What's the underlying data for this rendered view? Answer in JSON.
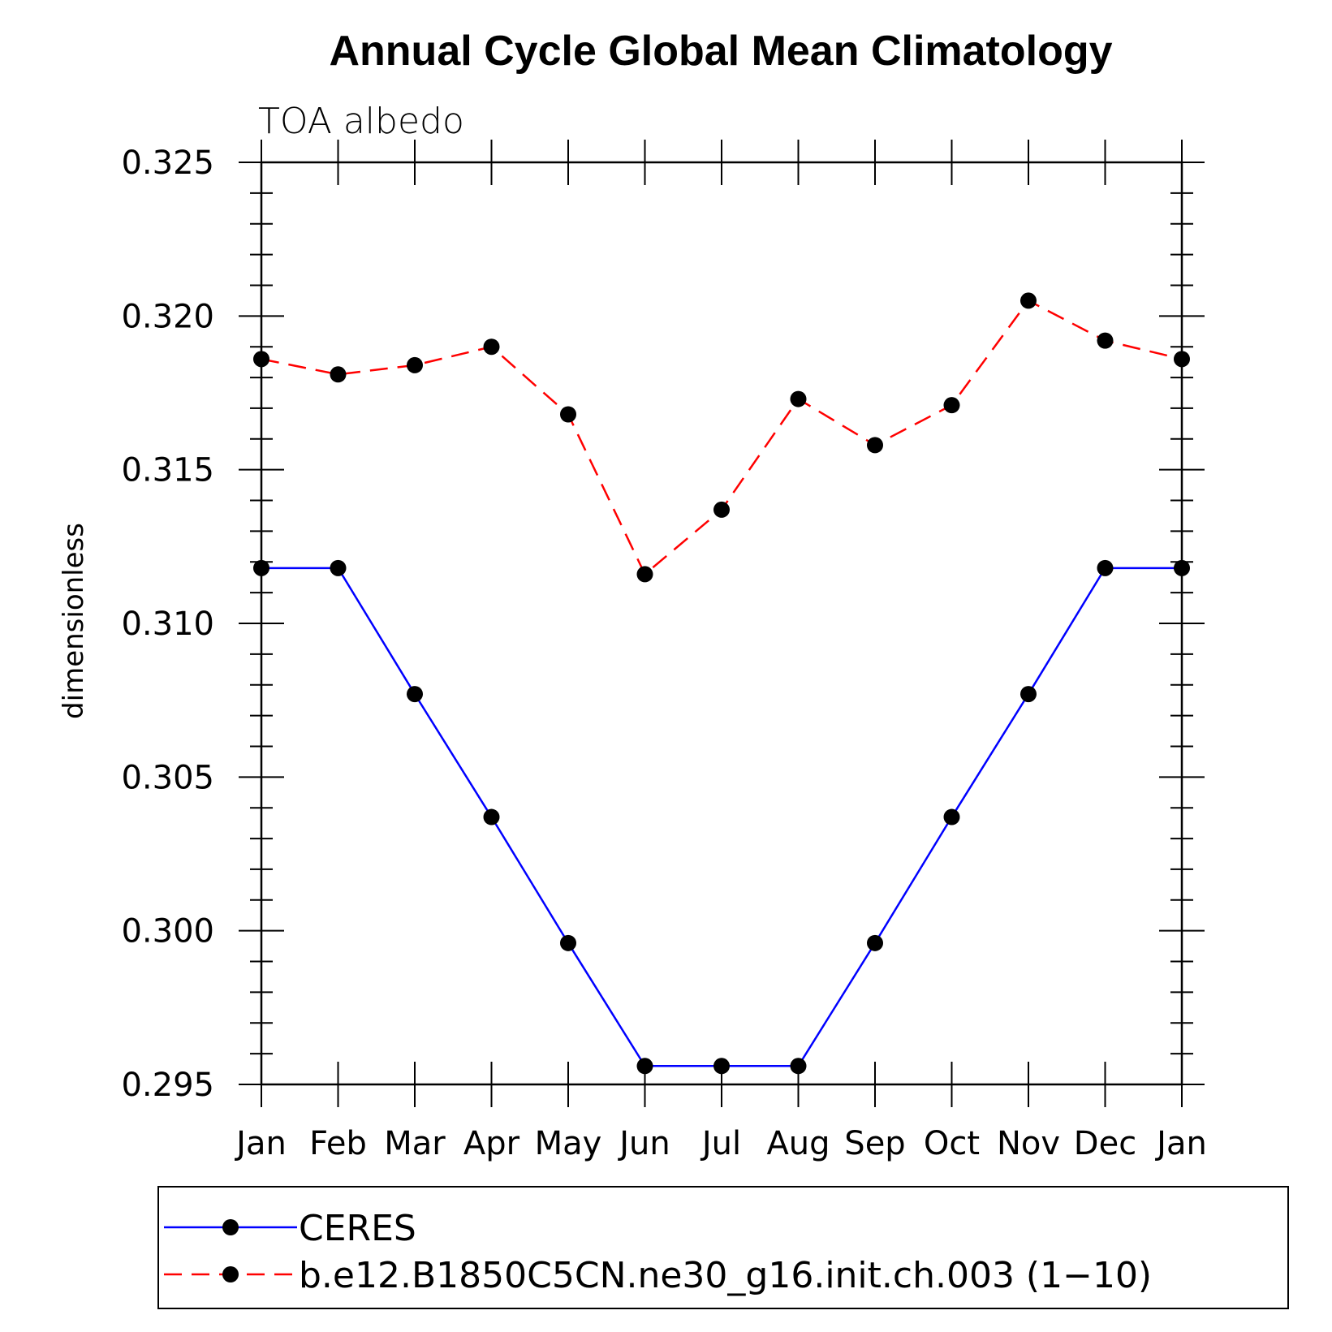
{
  "chart_data": {
    "type": "line",
    "title": "Annual Cycle Global Mean Climatology",
    "subtitle": "TOA albedo",
    "xlabel": "",
    "ylabel": "dimensionless",
    "categories": [
      "Jan",
      "Feb",
      "Mar",
      "Apr",
      "May",
      "Jun",
      "Jul",
      "Aug",
      "Sep",
      "Oct",
      "Nov",
      "Dec",
      "Jan"
    ],
    "ylim": [
      0.295,
      0.325
    ],
    "yticks": [
      "0.295",
      "0.300",
      "0.305",
      "0.310",
      "0.315",
      "0.320",
      "0.325"
    ],
    "grid": false,
    "legend_placement": "bottom",
    "series": [
      {
        "name": "CERES",
        "color": "#0000ff",
        "line_style": "solid",
        "marker": "filled-circle",
        "values": [
          0.3118,
          0.3118,
          0.3077,
          0.3037,
          0.2996,
          0.2956,
          0.2956,
          0.2956,
          0.2996,
          0.3037,
          0.3077,
          0.3118,
          0.3118
        ]
      },
      {
        "name": "b.e12.B1850C5CN.ne30_g16.init.ch.003 (1−10)",
        "color": "#ff0000",
        "line_style": "dashed",
        "marker": "filled-circle",
        "values": [
          0.3186,
          0.3181,
          0.3184,
          0.319,
          0.3168,
          0.3116,
          0.3137,
          0.3173,
          0.3158,
          0.3171,
          0.3205,
          0.3192,
          0.3186
        ]
      }
    ]
  }
}
